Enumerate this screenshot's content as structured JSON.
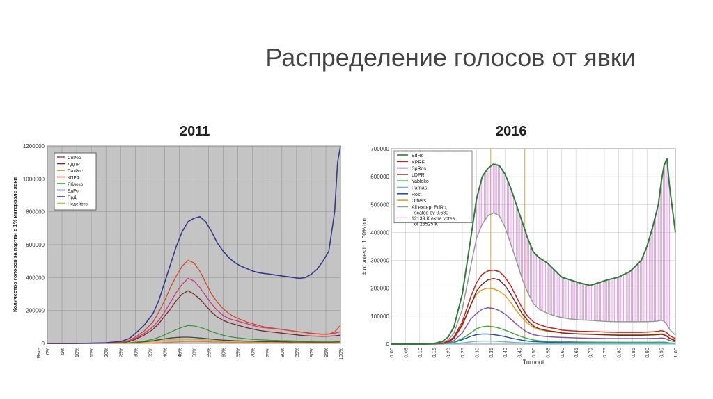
{
  "slide": {
    "title": "Распределение голосов от явки"
  },
  "chart_data": [
    {
      "type": "line",
      "heading": "2011",
      "ylabel": "Количество голосов за партии в 1% интервале явки",
      "xlabel_tick0": "Явка",
      "ylim": [
        0,
        1200000
      ],
      "yticks": [
        "0",
        "200000",
        "400000",
        "600000",
        "800000",
        "1000000",
        "1200000"
      ],
      "xticks": [
        "0%",
        "5%",
        "10%",
        "15%",
        "20%",
        "25%",
        "30%",
        "35%",
        "40%",
        "45%",
        "50%",
        "55%",
        "60%",
        "65%",
        "70%",
        "75%",
        "80%",
        "85%",
        "90%",
        "95%",
        "100%"
      ],
      "x": [
        0,
        10,
        20,
        25,
        28,
        30,
        33,
        36,
        38,
        40,
        42,
        44,
        46,
        48,
        50,
        52,
        54,
        56,
        58,
        60,
        62,
        64,
        66,
        68,
        70,
        72,
        74,
        76,
        78,
        80,
        82,
        84,
        86,
        88,
        90,
        92,
        94,
        96,
        98,
        99,
        100
      ],
      "background": "#c4c4c4",
      "series": [
        {
          "name": "СпРос",
          "color": "#cc3a7a",
          "values": [
            0,
            0,
            2000,
            6000,
            15000,
            30000,
            60000,
            100000,
            140000,
            190000,
            250000,
            310000,
            360000,
            395000,
            380000,
            340000,
            290000,
            240000,
            200000,
            170000,
            150000,
            140000,
            130000,
            120000,
            110000,
            100000,
            95000,
            92000,
            88000,
            85000,
            80000,
            75000,
            70000,
            65000,
            60000,
            58000,
            56000,
            58000,
            62000,
            66000,
            70000
          ]
        },
        {
          "name": "ЛДПР",
          "color": "#7a2a2a",
          "values": [
            0,
            0,
            1500,
            5000,
            12000,
            25000,
            50000,
            85000,
            120000,
            165000,
            210000,
            260000,
            300000,
            320000,
            300000,
            270000,
            230000,
            190000,
            160000,
            140000,
            125000,
            115000,
            105000,
            95000,
            88000,
            80000,
            75000,
            70000,
            66000,
            62000,
            58000,
            54000,
            50000,
            47000,
            45000,
            44000,
            43000,
            44000,
            46000,
            48000,
            50000
          ]
        },
        {
          "name": "ПатРос",
          "color": "#e87a30",
          "values": [
            0,
            0,
            0,
            0,
            0,
            0,
            1000,
            2000,
            3500,
            5000,
            7000,
            9000,
            11000,
            12500,
            13000,
            12000,
            11000,
            9500,
            8500,
            7500,
            6500,
            6000,
            5500,
            5000,
            4800,
            4500,
            4200,
            4000,
            3800,
            3600,
            3400,
            3200,
            3000,
            2800,
            2600,
            2500,
            2400,
            2400,
            2500,
            2600,
            2700
          ]
        },
        {
          "name": "КПРФ",
          "color": "#d24a2a",
          "values": [
            0,
            0,
            2500,
            7000,
            18000,
            38000,
            75000,
            130000,
            190000,
            260000,
            340000,
            410000,
            470000,
            505000,
            490000,
            440000,
            370000,
            300000,
            250000,
            210000,
            180000,
            160000,
            145000,
            130000,
            120000,
            110000,
            100000,
            95000,
            90000,
            85000,
            80000,
            75000,
            70000,
            66000,
            62000,
            58000,
            55000,
            56000,
            70000,
            90000,
            110000
          ]
        },
        {
          "name": "Яблоко",
          "color": "#3a9a3a",
          "values": [
            0,
            0,
            500,
            1500,
            3500,
            7000,
            14000,
            25000,
            37000,
            52000,
            68000,
            84000,
            98000,
            108000,
            106000,
            98000,
            86000,
            72000,
            60000,
            50000,
            42000,
            36000,
            32000,
            28000,
            25000,
            23000,
            21000,
            19000,
            18000,
            17000,
            16000,
            15000,
            14000,
            13000,
            12500,
            12000,
            11500,
            11500,
            12000,
            13000,
            14000
          ]
        },
        {
          "name": "ЕдРо",
          "color": "#3a3a8c",
          "values": [
            0,
            0,
            4000,
            12000,
            30000,
            60000,
            110000,
            180000,
            260000,
            370000,
            480000,
            590000,
            680000,
            740000,
            760000,
            770000,
            740000,
            680000,
            610000,
            560000,
            520000,
            490000,
            470000,
            455000,
            440000,
            430000,
            425000,
            420000,
            415000,
            410000,
            405000,
            400000,
            395000,
            400000,
            420000,
            450000,
            500000,
            560000,
            800000,
            1100000,
            1200000
          ]
        },
        {
          "name": "ПрД",
          "color": "#444444",
          "values": [
            0,
            0,
            500,
            1500,
            3000,
            6000,
            10000,
            16000,
            22000,
            28000,
            33000,
            36000,
            38000,
            38000,
            36000,
            33000,
            30000,
            26000,
            23000,
            20000,
            18000,
            16000,
            15000,
            14000,
            13000,
            12000,
            11500,
            11000,
            10500,
            10000,
            9500,
            9000,
            8500,
            8000,
            7800,
            7600,
            7500,
            7600,
            8000,
            8500,
            9000
          ]
        },
        {
          "name": "Недейств.",
          "color": "#c7b640",
          "values": [
            0,
            0,
            300,
            900,
            2000,
            4000,
            7000,
            11000,
            15000,
            19000,
            22000,
            24000,
            25500,
            26000,
            25000,
            23000,
            21000,
            18500,
            16500,
            14500,
            13000,
            12000,
            11000,
            10500,
            10000,
            9500,
            9000,
            8700,
            8400,
            8100,
            7800,
            7500,
            7200,
            7000,
            6800,
            6700,
            6600,
            6700,
            7000,
            7500,
            8000
          ]
        }
      ]
    },
    {
      "type": "line",
      "heading": "2016",
      "xlabel": "Turnout",
      "ylabel": "# of votes in 1.00% bin",
      "ylim": [
        0,
        700000
      ],
      "yticks": [
        "0",
        "100000",
        "200000",
        "300000",
        "400000",
        "500000",
        "600000",
        "700000"
      ],
      "xticks": [
        "0.00",
        "0.05",
        "0.10",
        "0.15",
        "0.20",
        "0.25",
        "0.30",
        "0.35",
        "0.40",
        "0.45",
        "0.50",
        "0.55",
        "0.60",
        "0.65",
        "0.70",
        "0.75",
        "0.80",
        "0.85",
        "0.90",
        "0.95",
        "1.00"
      ],
      "x": [
        0,
        0.1,
        0.15,
        0.18,
        0.2,
        0.22,
        0.25,
        0.28,
        0.3,
        0.32,
        0.34,
        0.36,
        0.38,
        0.4,
        0.42,
        0.44,
        0.46,
        0.48,
        0.5,
        0.52,
        0.55,
        0.58,
        0.6,
        0.63,
        0.66,
        0.7,
        0.73,
        0.76,
        0.8,
        0.84,
        0.88,
        0.9,
        0.92,
        0.94,
        0.95,
        0.96,
        0.97,
        0.98,
        1.0
      ],
      "vlines": [
        0.35,
        0.47
      ],
      "series": [
        {
          "name": "EdRo",
          "color": "#2e7d3a",
          "values": [
            0,
            0,
            2000,
            10000,
            25000,
            60000,
            180000,
            380000,
            520000,
            600000,
            630000,
            645000,
            640000,
            610000,
            560000,
            500000,
            440000,
            380000,
            330000,
            310000,
            290000,
            260000,
            240000,
            230000,
            220000,
            210000,
            220000,
            230000,
            240000,
            260000,
            300000,
            350000,
            420000,
            500000,
            580000,
            640000,
            665000,
            560000,
            400000
          ]
        },
        {
          "name": "KPRF",
          "color": "#cc2222",
          "values": [
            0,
            0,
            1000,
            4000,
            10000,
            25000,
            80000,
            170000,
            220000,
            250000,
            262000,
            265000,
            260000,
            240000,
            210000,
            170000,
            130000,
            100000,
            80000,
            70000,
            60000,
            55000,
            50000,
            48000,
            46000,
            45000,
            44000,
            43000,
            42000,
            42000,
            42000,
            43000,
            44000,
            46000,
            48000,
            46000,
            40000,
            30000,
            20000
          ]
        },
        {
          "name": "SpRos",
          "color": "#8855aa",
          "values": [
            0,
            0,
            500,
            2000,
            5000,
            12000,
            40000,
            90000,
            110000,
            125000,
            130000,
            128000,
            120000,
            108000,
            90000,
            72000,
            55000,
            42000,
            34000,
            30000,
            27000,
            25000,
            24000,
            23000,
            22000,
            21000,
            20500,
            20000,
            20000,
            20000,
            20000,
            20000,
            20500,
            21000,
            22000,
            21000,
            18000,
            13000,
            8000
          ]
        },
        {
          "name": "LDPR",
          "color": "#7a2a2a",
          "values": [
            0,
            0,
            800,
            3000,
            8000,
            20000,
            70000,
            140000,
            190000,
            215000,
            230000,
            235000,
            230000,
            210000,
            180000,
            145000,
            110000,
            85000,
            65000,
            55000,
            48000,
            44000,
            40000,
            38000,
            36000,
            35000,
            34000,
            33000,
            32000,
            32000,
            32000,
            32500,
            33000,
            34000,
            35000,
            33000,
            28000,
            20000,
            12000
          ]
        },
        {
          "name": "Yabloko",
          "color": "#44aa44",
          "values": [
            0,
            0,
            300,
            1000,
            3000,
            7000,
            20000,
            40000,
            55000,
            62000,
            64000,
            62000,
            57000,
            50000,
            42000,
            34000,
            26000,
            20000,
            15000,
            12000,
            10000,
            9000,
            8500,
            8000,
            7500,
            7200,
            7000,
            6800,
            6600,
            6500,
            6500,
            6500,
            6600,
            6800,
            7000,
            6800,
            6000,
            4500,
            3000
          ]
        },
        {
          "name": "Parnas",
          "color": "#66bbdd",
          "values": [
            0,
            0,
            100,
            300,
            800,
            1500,
            4000,
            8000,
            10000,
            11000,
            11000,
            10500,
            9500,
            8500,
            7000,
            5500,
            4500,
            3500,
            2800,
            2400,
            2000,
            1800,
            1700,
            1600,
            1500,
            1400,
            1350,
            1300,
            1250,
            1200,
            1200,
            1200,
            1200,
            1200,
            1200,
            1150,
            1000,
            800,
            500
          ]
        },
        {
          "name": "Rost",
          "color": "#2255aa",
          "values": [
            0,
            0,
            300,
            1000,
            2500,
            6000,
            16000,
            28000,
            34000,
            36000,
            36000,
            34000,
            31000,
            27000,
            22000,
            18000,
            14000,
            11000,
            9000,
            8000,
            7000,
            6500,
            6000,
            5800,
            5600,
            5400,
            5200,
            5000,
            4900,
            4800,
            4800,
            4800,
            4800,
            4900,
            5000,
            4800,
            4200,
            3200,
            2000
          ]
        },
        {
          "name": "Others",
          "color": "#e8a020",
          "values": [
            0,
            0,
            800,
            3000,
            8000,
            20000,
            65000,
            140000,
            180000,
            195000,
            200000,
            198000,
            190000,
            175000,
            150000,
            120000,
            95000,
            75000,
            60000,
            52000,
            46000,
            42000,
            40000,
            38000,
            37000,
            36000,
            35000,
            34000,
            34000,
            34000,
            34000,
            34500,
            35000,
            36000,
            37000,
            35000,
            30000,
            22000,
            14000
          ]
        },
        {
          "name": "All except EdRo, scaled by 0.680",
          "color": "#999999",
          "values": [
            0,
            0,
            1500,
            6000,
            15000,
            38000,
            125000,
            280000,
            380000,
            430000,
            460000,
            470000,
            460000,
            420000,
            360000,
            300000,
            235000,
            185000,
            145000,
            125000,
            110000,
            100000,
            95000,
            90000,
            87000,
            85000,
            83000,
            81000,
            80000,
            80000,
            80000,
            80500,
            81000,
            83000,
            86000,
            82000,
            70000,
            52000,
            32000
          ]
        }
      ],
      "legend_note": "12139 K extra votes of 28525 K"
    }
  ]
}
